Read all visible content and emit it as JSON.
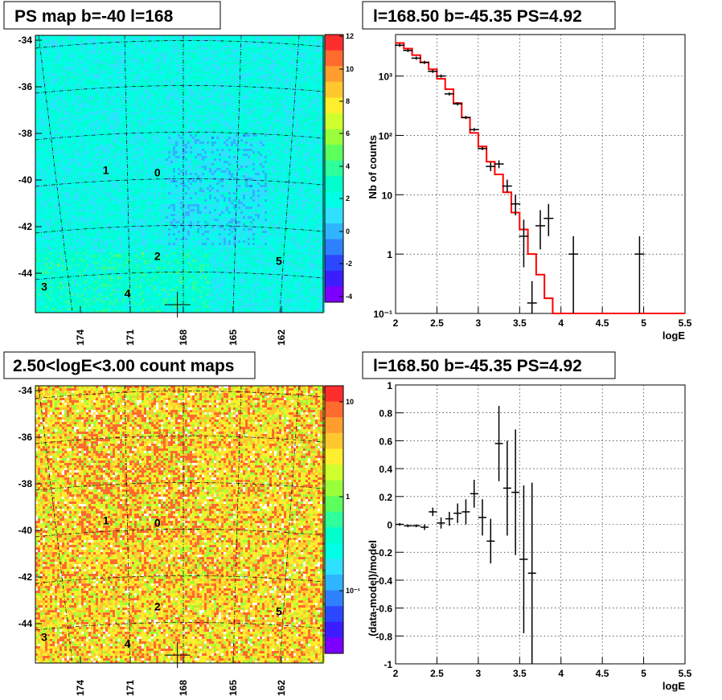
{
  "chart_data": [
    {
      "id": "ps-map",
      "type": "heatmap",
      "title": "PS map b=-40 l=168",
      "y_ticks": [
        "-34",
        "-36",
        "-38",
        "-40",
        "-42",
        "-44"
      ],
      "x_ticks": [
        "174",
        "171",
        "168",
        "165",
        "162"
      ],
      "colorbar_ticks": [
        "12",
        "10",
        "8",
        "6",
        "4",
        "2",
        "0",
        "-2",
        "-4"
      ],
      "zrange": [
        -5,
        12
      ],
      "sources": [
        {
          "label": "0",
          "lon": 169.7,
          "lat": -39.7
        },
        {
          "label": "1",
          "lon": 172.8,
          "lat": -39.6
        },
        {
          "label": "2",
          "lon": 169.7,
          "lat": -43.3
        },
        {
          "label": "3",
          "lon": 176.5,
          "lat": -44.6
        },
        {
          "label": "4",
          "lon": 171.5,
          "lat": -44.9
        },
        {
          "label": "5",
          "lon": 162.4,
          "lat": -43.5
        }
      ],
      "marker": {
        "lon": 168.5,
        "lat": -45.35
      },
      "colors": [
        "#7b00ff",
        "#3d1dff",
        "#2b47ff",
        "#2f80ff",
        "#2fb4ff",
        "#2fe0ff",
        "#00ffe6",
        "#00ffcc",
        "#2eff9c",
        "#5dff5d",
        "#9aff3a",
        "#d0ff2e",
        "#ffee2e",
        "#ffc72e",
        "#ff9e2e",
        "#ff6a2e",
        "#ff2e2e"
      ]
    },
    {
      "id": "count-map",
      "type": "heatmap",
      "title": "2.50<logE<3.00 count maps",
      "y_ticks": [
        "-34",
        "-36",
        "-38",
        "-40",
        "-42",
        "-44"
      ],
      "x_ticks": [
        "174",
        "171",
        "168",
        "165",
        "162"
      ],
      "colorbar_ticks": [
        "10",
        "1",
        "10⁻¹"
      ],
      "zscale": "log"
    },
    {
      "id": "spectrum",
      "type": "line",
      "title": "l=168.50 b=-45.35 PS=4.92",
      "xlabel": "logE",
      "ylabel": "Nb of counts",
      "yscale": "log",
      "xlim": [
        2,
        5.5
      ],
      "ylim": [
        0.1,
        5000
      ],
      "x_ticks": [
        "2",
        "2.5",
        "3",
        "3.5",
        "4",
        "4.5",
        "5",
        "5.5"
      ],
      "y_ticks": [
        "10³",
        "10²",
        "10",
        "1",
        "10⁻¹"
      ],
      "data": {
        "x": [
          2.05,
          2.15,
          2.25,
          2.35,
          2.45,
          2.55,
          2.65,
          2.75,
          2.85,
          2.95,
          3.05,
          3.15,
          3.25,
          3.35,
          3.45,
          3.55,
          3.65,
          3.75,
          3.85,
          4.15,
          4.95
        ],
        "y": [
          3300,
          2700,
          2000,
          1700,
          1200,
          1000,
          500,
          340,
          200,
          125,
          60,
          30,
          33,
          14,
          7,
          2,
          0.15,
          3,
          4,
          1,
          1
        ],
        "err_lo": [
          0,
          0,
          0,
          0,
          0,
          0,
          0,
          0,
          0,
          0,
          0,
          5,
          5,
          3,
          2.5,
          1.4,
          0.05,
          1.8,
          2,
          0.9,
          0.9
        ],
        "err_hi": [
          0,
          0,
          0,
          0,
          0,
          0,
          0,
          0,
          0,
          0,
          0,
          5,
          5,
          4,
          3,
          1.8,
          0.2,
          2.5,
          3,
          1,
          1
        ]
      },
      "model": {
        "edges": [
          2.0,
          2.1,
          2.2,
          2.3,
          2.4,
          2.5,
          2.6,
          2.7,
          2.8,
          2.9,
          3.0,
          3.1,
          3.2,
          3.3,
          3.4,
          3.5,
          3.6,
          3.7,
          3.8,
          3.9,
          4.0,
          5.5
        ],
        "y": [
          3600,
          2900,
          2250,
          1700,
          1300,
          900,
          600,
          350,
          200,
          110,
          65,
          36,
          22,
          11,
          5,
          2.6,
          1.0,
          0.45,
          0.18,
          0.1,
          0.1
        ]
      }
    },
    {
      "id": "residuals",
      "type": "scatter",
      "title": "l=168.50 b=-45.35 PS=4.92",
      "xlabel": "logE",
      "ylabel": "(data-model)/model",
      "xlim": [
        2,
        5.5
      ],
      "ylim": [
        -1,
        1
      ],
      "x_ticks": [
        "2",
        "2.5",
        "3",
        "3.5",
        "4",
        "4.5",
        "5",
        "5.5"
      ],
      "y_ticks": [
        "1",
        "0.8",
        "0.6",
        "0.4",
        "0.2",
        "0",
        "-0.2",
        "-0.4",
        "-0.6",
        "-0.8",
        "-1"
      ],
      "data": {
        "x": [
          2.05,
          2.15,
          2.25,
          2.35,
          2.45,
          2.55,
          2.65,
          2.75,
          2.85,
          2.95,
          3.05,
          3.15,
          3.25,
          3.35,
          3.45,
          3.55,
          3.65
        ],
        "y": [
          0,
          -0.01,
          -0.01,
          -0.02,
          0.09,
          0.01,
          0.04,
          0.08,
          0.09,
          0.22,
          0.05,
          -0.12,
          0.58,
          0.26,
          0.23,
          -0.25,
          -0.35
        ],
        "err": [
          0.01,
          0.01,
          0.01,
          0.02,
          0.03,
          0.04,
          0.05,
          0.07,
          0.09,
          0.1,
          0.13,
          0.16,
          0.27,
          0.34,
          0.45,
          0.53,
          0.65
        ]
      }
    }
  ]
}
